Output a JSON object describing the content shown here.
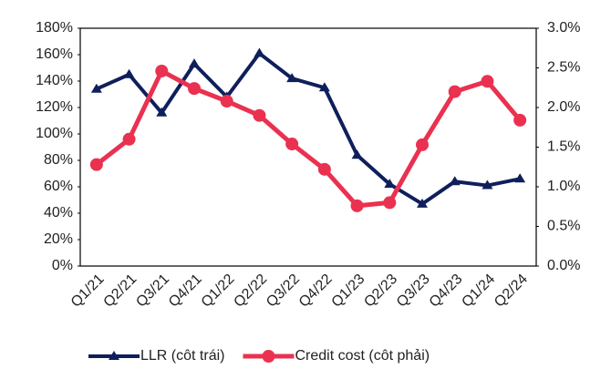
{
  "chart_data": {
    "type": "line",
    "categories": [
      "Q1/21",
      "Q2/21",
      "Q3/21",
      "Q4/21",
      "Q1/22",
      "Q2/22",
      "Q3/22",
      "Q4/22",
      "Q1/23",
      "Q2/23",
      "Q3/23",
      "Q4/23",
      "Q1/24",
      "Q2/24"
    ],
    "series": [
      {
        "name": "LLR (côt trái)",
        "color": "#0f1f5c",
        "marker": "triangle",
        "axis": "y",
        "values": [
          134,
          145,
          116,
          153,
          128,
          161,
          142,
          135,
          84,
          62,
          47,
          64,
          61,
          66
        ]
      },
      {
        "name": "Credit cost (côt phải)",
        "color": "#ea3150",
        "marker": "circle",
        "axis": "y2",
        "values": [
          1.28,
          1.6,
          2.46,
          2.24,
          2.08,
          1.9,
          1.54,
          1.22,
          0.76,
          0.8,
          1.53,
          2.2,
          2.33,
          1.84
        ]
      }
    ],
    "ylim": [
      0,
      180
    ],
    "yticks": [
      {
        "value": 0,
        "label": "0%"
      },
      {
        "value": 20,
        "label": "20%"
      },
      {
        "value": 40,
        "label": "40%"
      },
      {
        "value": 60,
        "label": "60%"
      },
      {
        "value": 80,
        "label": "80%"
      },
      {
        "value": 100,
        "label": "100%"
      },
      {
        "value": 120,
        "label": "120%"
      },
      {
        "value": 140,
        "label": "140%"
      },
      {
        "value": 160,
        "label": "160%"
      },
      {
        "value": 180,
        "label": "180%"
      }
    ],
    "y2lim": [
      0,
      3
    ],
    "y2ticks": [
      {
        "value": 0,
        "label": "0.0%"
      },
      {
        "value": 0.5,
        "label": "0.5%"
      },
      {
        "value": 1,
        "label": "1.0%"
      },
      {
        "value": 1.5,
        "label": "1.5%"
      },
      {
        "value": 2,
        "label": "2.0%"
      },
      {
        "value": 2.5,
        "label": "2.5%"
      },
      {
        "value": 3,
        "label": "3.0%"
      }
    ],
    "legend": "bottom"
  }
}
